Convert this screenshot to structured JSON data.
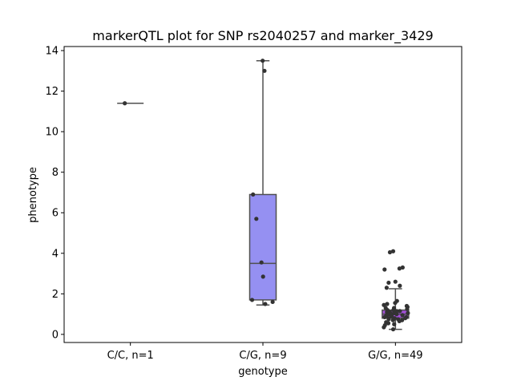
{
  "chart_data": {
    "type": "box",
    "title": "markerQTL plot for SNP rs2040257 and marker_3429",
    "xlabel": "genotype",
    "ylabel": "phenotype",
    "ylim": [
      -0.4,
      14.2
    ],
    "yticks": [
      0,
      2,
      4,
      6,
      8,
      10,
      12,
      14
    ],
    "grid": false,
    "legend": "none",
    "categories": [
      "C/C, n=1",
      "C/G, n=9",
      "G/G, n=49"
    ],
    "boxes": [
      {
        "category": "C/C, n=1",
        "min": 11.4,
        "q1": 11.4,
        "median": 11.4,
        "q3": 11.4,
        "max": 11.4,
        "color": "#ffffff",
        "points": [
          11.4
        ]
      },
      {
        "category": "C/G, n=9",
        "min": 1.45,
        "q1": 1.7,
        "median": 3.5,
        "q3": 6.9,
        "max": 13.5,
        "color": "#9590f2",
        "points": [
          13.5,
          13.0,
          6.9,
          5.7,
          3.55,
          2.85,
          1.7,
          1.6,
          1.5
        ]
      },
      {
        "category": "G/G, n=49",
        "min": 0.25,
        "q1": 0.8,
        "median": 1.0,
        "q3": 1.2,
        "max": 2.25,
        "color": "#a24fd8",
        "points": [
          4.1,
          4.05,
          3.3,
          3.25,
          3.2,
          2.6,
          2.55,
          2.4,
          2.3,
          1.65,
          1.55,
          1.5,
          1.45,
          1.4,
          1.35,
          1.3,
          1.3,
          1.25,
          1.2,
          1.2,
          1.15,
          1.15,
          1.1,
          1.1,
          1.05,
          1.05,
          1.0,
          1.0,
          1.0,
          0.95,
          0.95,
          0.9,
          0.9,
          0.85,
          0.85,
          0.8,
          0.8,
          0.8,
          0.75,
          0.75,
          0.7,
          0.7,
          0.65,
          0.6,
          0.55,
          0.5,
          0.45,
          0.35,
          0.25
        ]
      }
    ],
    "colors": {
      "whisker": "#505050",
      "point": "#333333",
      "axis": "#000000"
    }
  }
}
